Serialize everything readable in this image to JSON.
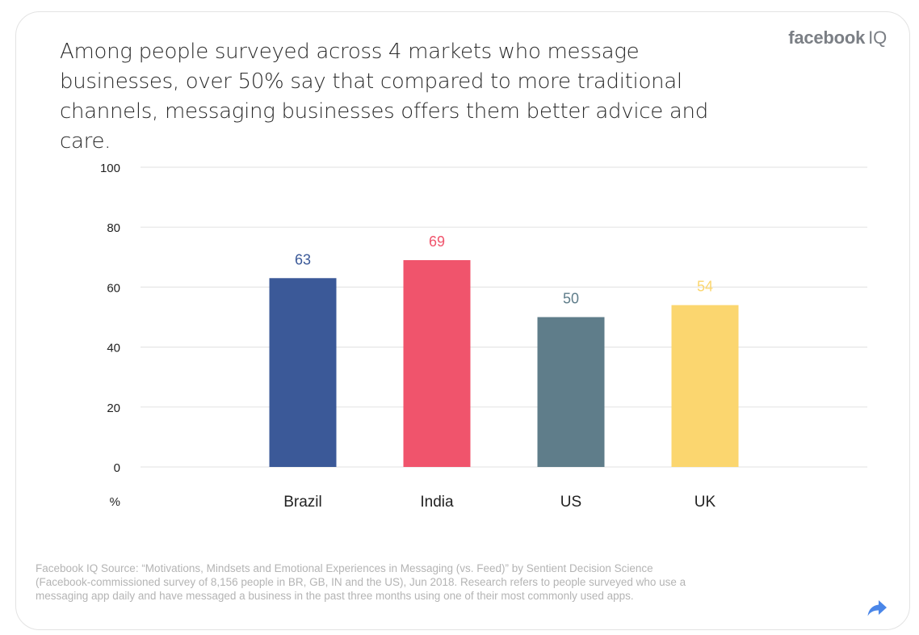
{
  "brand": {
    "name": "facebook",
    "suffix": "IQ"
  },
  "headline": "Among people surveyed across 4 markets who message businesses, over 50% say that compared to more traditional channels, messaging businesses offers them better advice and care.",
  "chart_data": {
    "type": "bar",
    "title": "",
    "xlabel": "",
    "ylabel": "%",
    "ylim": [
      0,
      100
    ],
    "yticks": [
      0,
      20,
      40,
      60,
      80,
      100
    ],
    "categories": [
      "Brazil",
      "India",
      "US",
      "UK"
    ],
    "values": [
      63,
      69,
      50,
      54
    ],
    "colors": [
      "#3b5998",
      "#f0546c",
      "#5f7d8a",
      "#fbd66f"
    ],
    "grid": true
  },
  "source": "Facebook IQ Source: “Motivations, Mindsets and Emotional Experiences in Messaging (vs. Feed)” by Sentient Decision Science (Facebook-commissioned survey of 8,156 people in BR, GB, IN and the US), Jun 2018. Research refers to people surveyed who use a messaging app daily and have messaged a business in the past three months using one of their most commonly used apps.",
  "share_icon": "share-arrow-icon",
  "colors": {
    "grid": "#e6e6e6",
    "axis_text": "#222222",
    "share": "#4a86e8"
  }
}
